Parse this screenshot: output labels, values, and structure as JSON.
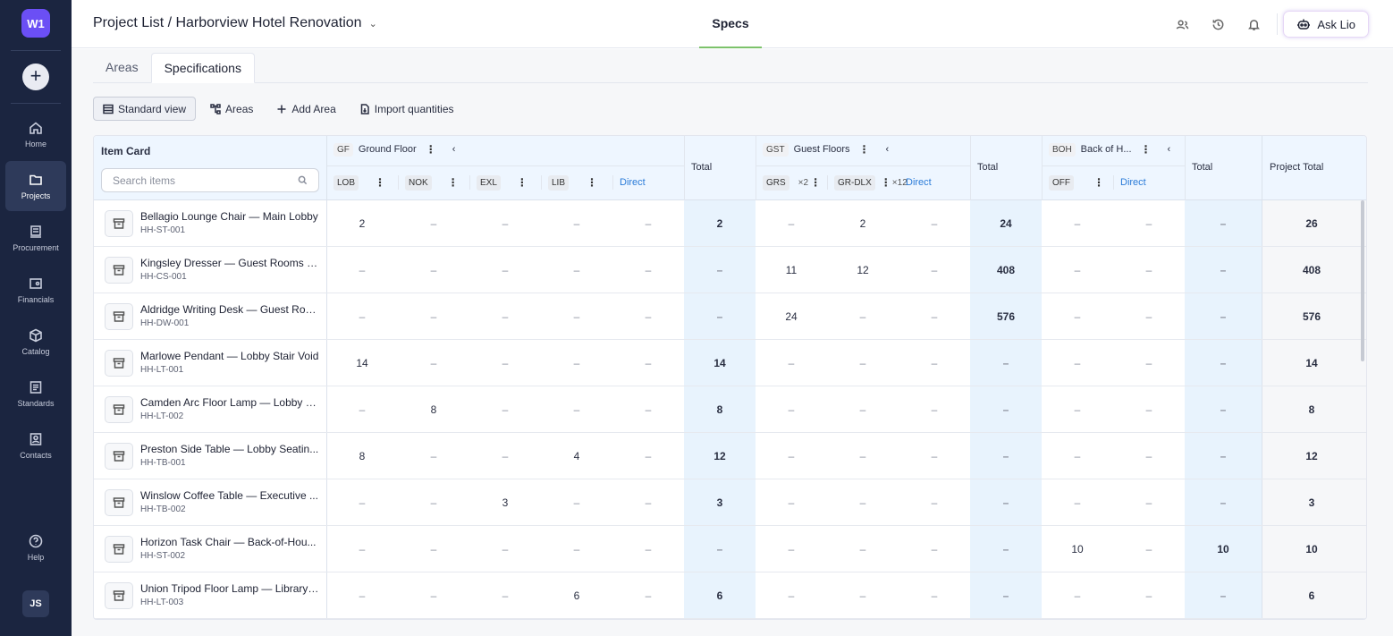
{
  "sidebar": {
    "workspace": "W1",
    "add_label": "+",
    "items": [
      {
        "label": "Home",
        "icon": "home-icon"
      },
      {
        "label": "Projects",
        "icon": "folder-icon"
      },
      {
        "label": "Procurement",
        "icon": "procurement-icon"
      },
      {
        "label": "Financials",
        "icon": "wallet-icon"
      },
      {
        "label": "Catalog",
        "icon": "cube-icon"
      },
      {
        "label": "Standards",
        "icon": "standards-icon"
      },
      {
        "label": "Contacts",
        "icon": "contacts-icon"
      }
    ],
    "help_label": "Help",
    "user_initials": "JS"
  },
  "header": {
    "breadcrumb": "Project List / Harborview Hotel Renovation",
    "center_tab": "Specs",
    "ask_label": "Ask Lio"
  },
  "subtabs": [
    "Areas",
    "Specifications"
  ],
  "toolbar": {
    "standard_view": "Standard view",
    "areas": "Areas",
    "add_area": "Add Area",
    "import": "Import quantities"
  },
  "table": {
    "item_card_label": "Item Card",
    "search_placeholder": "Search items",
    "groups": [
      {
        "code": "GF",
        "name": "Ground Floor"
      },
      {
        "code": "GST",
        "name": "Guest Floors"
      },
      {
        "code": "BOH",
        "name": "Back of H..."
      }
    ],
    "total_label": "Total",
    "project_total_label": "Project Total",
    "direct_label": "Direct",
    "gf_areas": [
      "LOB",
      "NOK",
      "EXL",
      "LIB"
    ],
    "gst_areas": [
      {
        "code": "GRS",
        "mult": "×2"
      },
      {
        "code": "GR-DLX",
        "mult": "×12"
      }
    ],
    "boh_areas": [
      "OFF"
    ],
    "rows": [
      {
        "name": "Bellagio Lounge Chair — Main Lobby",
        "code": "HH-ST-001",
        "vals": [
          "2",
          "–",
          "–",
          "–",
          "–",
          "2",
          "–",
          "2",
          "–",
          "24",
          "–",
          "–",
          "–",
          "26"
        ]
      },
      {
        "name": "Kingsley Dresser — Guest Rooms L...",
        "code": "HH-CS-001",
        "vals": [
          "–",
          "–",
          "–",
          "–",
          "–",
          "–",
          "11",
          "12",
          "–",
          "408",
          "–",
          "–",
          "–",
          "408"
        ]
      },
      {
        "name": "Aldridge Writing Desk — Guest Roo...",
        "code": "HH-DW-001",
        "vals": [
          "–",
          "–",
          "–",
          "–",
          "–",
          "–",
          "24",
          "–",
          "–",
          "576",
          "–",
          "–",
          "–",
          "576"
        ]
      },
      {
        "name": "Marlowe Pendant — Lobby Stair Void",
        "code": "HH-LT-001",
        "vals": [
          "14",
          "–",
          "–",
          "–",
          "–",
          "14",
          "–",
          "–",
          "–",
          "–",
          "–",
          "–",
          "–",
          "14"
        ]
      },
      {
        "name": "Camden Arc Floor Lamp — Lobby R...",
        "code": "HH-LT-002",
        "vals": [
          "–",
          "8",
          "–",
          "–",
          "–",
          "8",
          "–",
          "–",
          "–",
          "–",
          "–",
          "–",
          "–",
          "8"
        ]
      },
      {
        "name": "Preston Side Table — Lobby Seatin...",
        "code": "HH-TB-001",
        "vals": [
          "8",
          "–",
          "–",
          "4",
          "–",
          "12",
          "–",
          "–",
          "–",
          "–",
          "–",
          "–",
          "–",
          "12"
        ]
      },
      {
        "name": "Winslow Coffee Table — Executive ...",
        "code": "HH-TB-002",
        "vals": [
          "–",
          "–",
          "3",
          "–",
          "–",
          "3",
          "–",
          "–",
          "–",
          "–",
          "–",
          "–",
          "–",
          "3"
        ]
      },
      {
        "name": "Horizon Task Chair — Back-of-Hou...",
        "code": "HH-ST-002",
        "vals": [
          "–",
          "–",
          "–",
          "–",
          "–",
          "–",
          "–",
          "–",
          "–",
          "–",
          "10",
          "–",
          "10",
          "10"
        ]
      },
      {
        "name": "Union Tripod Floor Lamp — Library ...",
        "code": "HH-LT-003",
        "vals": [
          "–",
          "–",
          "–",
          "6",
          "–",
          "6",
          "–",
          "–",
          "–",
          "–",
          "–",
          "–",
          "–",
          "6"
        ]
      }
    ]
  },
  "colors": {
    "sidebar_bg": "#1b2540",
    "accent": "#6b4ff5",
    "tab_underline": "#7cc26b",
    "total_col_bg": "#e8f3fd",
    "header_bg": "#eef6ff",
    "direct_link": "#2a7bd8"
  }
}
